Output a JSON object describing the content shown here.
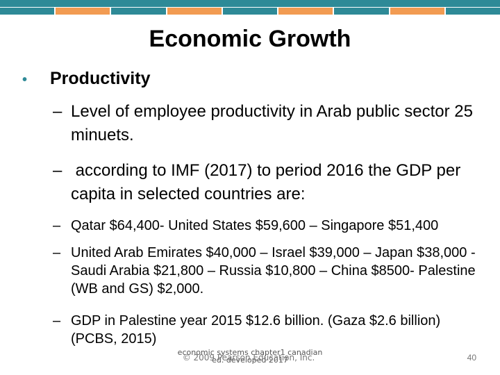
{
  "colors": {
    "band": "#2e8a97",
    "stripes": [
      "#2e8a97",
      "#f29b52",
      "#2e8a97",
      "#f29b52",
      "#2e8a97",
      "#f29b52",
      "#2e8a97",
      "#f29b52",
      "#2e8a97"
    ]
  },
  "title": "Economic Growth",
  "bullet": {
    "icon": "bullet-dot",
    "label": "Productivity"
  },
  "items": [
    {
      "dash": "–",
      "text": "Level of employee productivity in Arab public sector 25 minuets."
    },
    {
      "dash": "–",
      "text": " according to IMF (2017) to period 2016 the GDP per capita in selected countries are:"
    },
    {
      "dash": "–",
      "text": "Qatar $64,400- United States $59,600 – Singapore $51,400"
    },
    {
      "dash": "–",
      "text": "United Arab Emirates $40,000 – Israel $39,000 – Japan $38,000 - Saudi Arabia $21,800 – Russia $10,800 – China $8500- Palestine (WB and GS) $2,000."
    },
    {
      "dash": "–",
      "text": "GDP in Palestine year 2015 $12.6 billion. (Gaza $2.6 billion) (PCBS, 2015)"
    }
  ],
  "footer": {
    "note": "economic systems chapter1 canadian ed. developed 2017",
    "copyright": "© 2009 Pearson Education, Inc."
  },
  "page_number": "40"
}
